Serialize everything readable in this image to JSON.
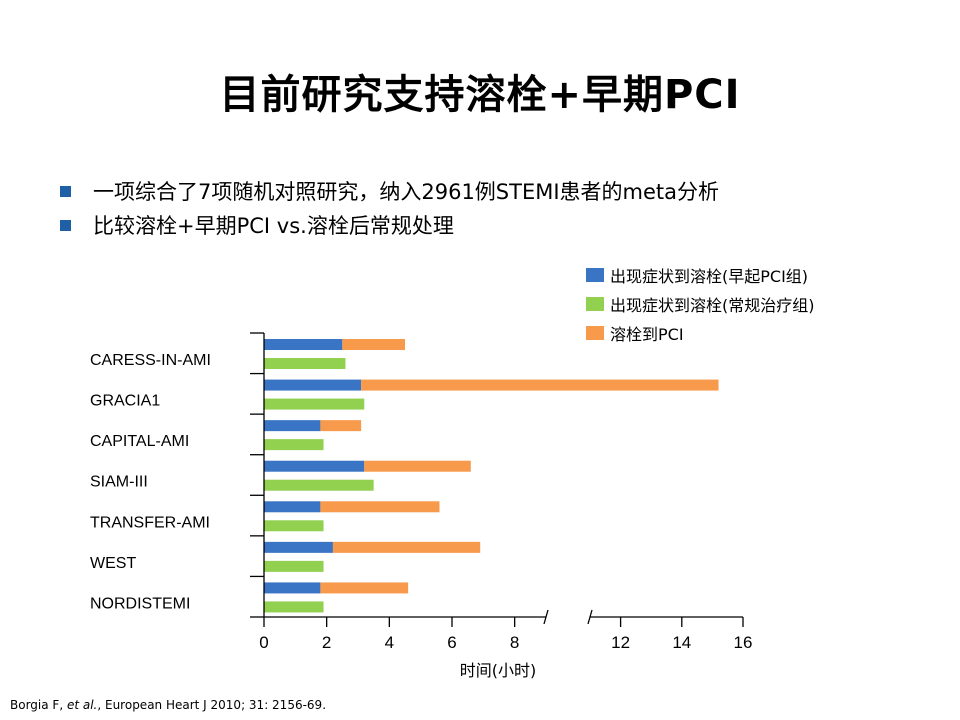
{
  "slide": {
    "title": "目前研究支持溶栓+早期PCI",
    "bullets": [
      "一项综合了7项随机对照研究，纳入2961例STEMI患者的meta分析",
      "比较溶栓+早期PCI vs.溶栓后常规处理"
    ],
    "footnote_prefix": "Borgia F, ",
    "footnote_etal": "et al.",
    "footnote_suffix": ", European Heart J 2010; 31: 2156-69."
  },
  "chart_data": {
    "type": "bar",
    "orientation": "horizontal",
    "stacked": true,
    "categories": [
      "CARESS-IN-AMI",
      "GRACIA1",
      "CAPITAL-AMI",
      "SIAM-III",
      "TRANSFER-AMI",
      "WEST",
      "NORDISTEMI"
    ],
    "series": [
      {
        "name": "出现症状到溶栓(早起PCI组)",
        "color": "#3a74c4",
        "bar_group": "early_pci",
        "values": [
          2.5,
          3.1,
          1.8,
          3.2,
          1.8,
          2.2,
          1.8
        ]
      },
      {
        "name": "溶栓到PCI",
        "color": "#f79a4b",
        "bar_group": "early_pci",
        "values": [
          2.0,
          12.1,
          1.3,
          3.4,
          3.8,
          4.7,
          2.8
        ]
      },
      {
        "name": "出现症状到溶栓(常规治疗组)",
        "color": "#92d050",
        "bar_group": "routine",
        "values": [
          2.6,
          3.2,
          1.9,
          3.5,
          1.9,
          1.9,
          1.9
        ]
      }
    ],
    "legend_order": [
      0,
      2,
      1
    ],
    "legend_position": "top-right",
    "xlabel": "时间(小时)",
    "xlim": [
      0,
      16
    ],
    "axis_break": [
      9,
      11
    ],
    "x_ticks": [
      0,
      2,
      4,
      6,
      8,
      12,
      14,
      16
    ],
    "x_tick_labels": [
      "0",
      "2",
      "4",
      "6",
      "8",
      "12",
      "14",
      "16"
    ]
  }
}
